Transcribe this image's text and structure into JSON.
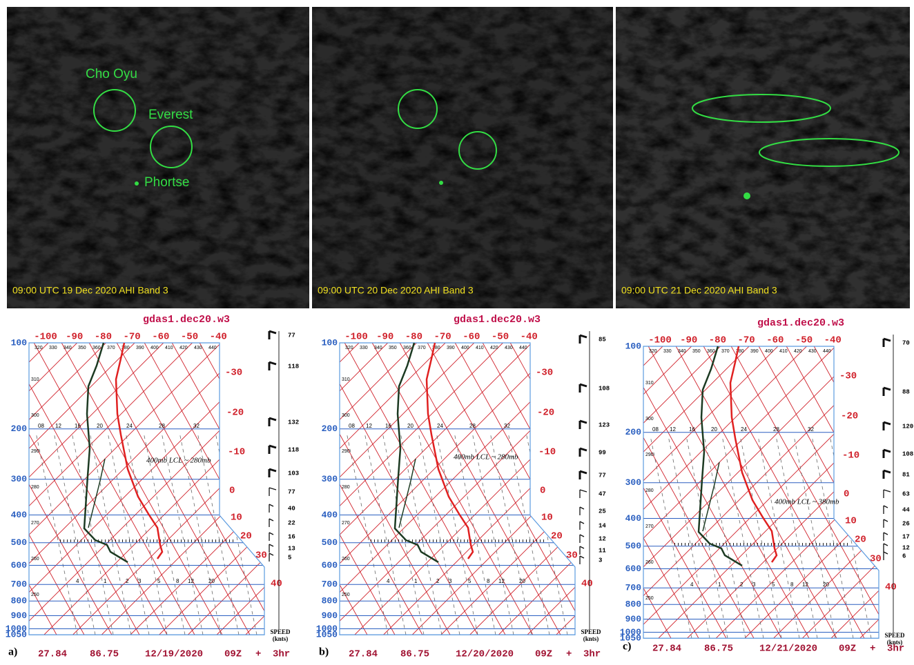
{
  "satellite_panels": [
    {
      "caption": "09:00 UTC 19 Dec 2020 AHI Band 3",
      "labels": [
        "Cho Oyu",
        "Everest",
        "Phortse"
      ]
    },
    {
      "caption": "09:00 UTC 20 Dec 2020 AHI Band 3"
    },
    {
      "caption": "09:00 UTC 21 Dec 2020 AHI Band 3"
    }
  ],
  "skewt_axes": {
    "pressure_labels": [
      100,
      200,
      300,
      400,
      500,
      600,
      700,
      800,
      900,
      1000,
      1050
    ],
    "temperature_top": [
      -100,
      -90,
      -80,
      -70,
      -60,
      -50,
      -40
    ],
    "temperature_right": [
      -30,
      -20,
      -10,
      0,
      10,
      20,
      30,
      40
    ],
    "theta_top": [
      "320",
      "330",
      "340",
      "350",
      "360",
      "370",
      "380",
      "390",
      "400",
      "410",
      "420",
      "430",
      "440"
    ],
    "theta_side": [
      "310",
      "300",
      "290",
      "280",
      "270",
      "260",
      "250"
    ],
    "mixing_upper": [
      "08",
      "12",
      "16",
      "20",
      "24",
      "28",
      "32"
    ],
    "mixing_lower": [
      "4",
      "1",
      "2",
      "3",
      "5",
      "8",
      "12",
      "20"
    ],
    "speed_label": "SPEED",
    "speed_unit": "(knts)"
  },
  "skewt_panels": [
    {
      "title": "gdas1.dec20.w3",
      "panel_label": "a)",
      "latitude": "27.84",
      "longitude": "86.75",
      "date": "12/19/2020",
      "time": "09Z",
      "plus": "+",
      "forecast": "3hr",
      "annotation": "400mb LCL ~ 280mb",
      "wind_speeds": [
        "77",
        "118",
        "132",
        "118",
        "103",
        "77",
        "40",
        "22",
        "16",
        "13",
        "5"
      ]
    },
    {
      "title": "gdas1.dec20.w3",
      "panel_label": "b)",
      "latitude": "27.84",
      "longitude": "86.75",
      "date": "12/20/2020",
      "time": "09Z",
      "plus": "+",
      "forecast": "3hr",
      "annotation": "400mb LCL ~ 280mb",
      "wind_speeds": [
        "85",
        "108",
        "123",
        "99",
        "77",
        "47",
        "25",
        "14",
        "12",
        "11",
        "3"
      ]
    },
    {
      "title": "gdas1.dec20.w3",
      "panel_label": "c)",
      "latitude": "27.84",
      "longitude": "86.75",
      "date": "12/21/2020",
      "time": "09Z",
      "plus": "+",
      "forecast": "3hr",
      "annotation": "400mb LCL ~ 380mb",
      "wind_speeds": [
        "70",
        "88",
        "120",
        "108",
        "81",
        "63",
        "44",
        "26",
        "17",
        "12",
        "6"
      ]
    }
  ]
}
